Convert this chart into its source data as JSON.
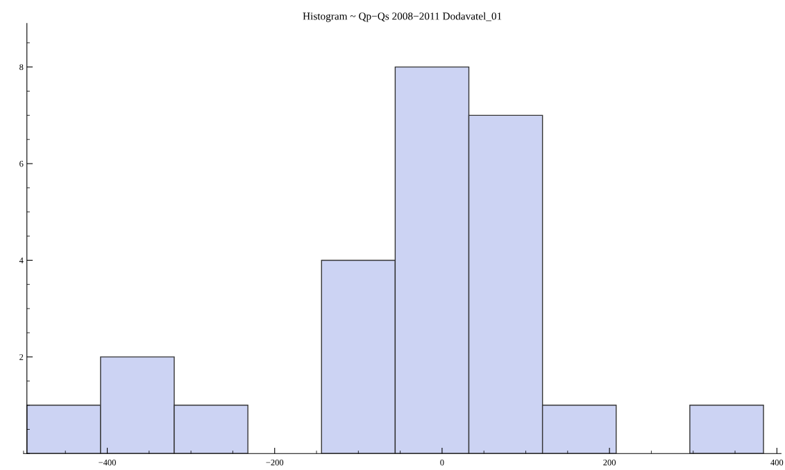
{
  "chart_data": {
    "type": "histogram",
    "title": "Histogram ~ Qp−Qs 2008−2011 Dodavatel_01",
    "bins": [
      -496,
      -408,
      -320,
      -232,
      -144,
      -56,
      32,
      120,
      208,
      296,
      384
    ],
    "values": [
      1,
      2,
      1,
      0,
      4,
      8,
      7,
      1,
      0,
      1
    ],
    "color": "#ccd3f3",
    "xlim": [
      -500,
      405
    ],
    "xticks": [
      -400,
      -200,
      0,
      200,
      400
    ],
    "ylim": [
      0,
      8.9
    ],
    "yticks": [
      2,
      4,
      6,
      8
    ],
    "grid": false
  }
}
